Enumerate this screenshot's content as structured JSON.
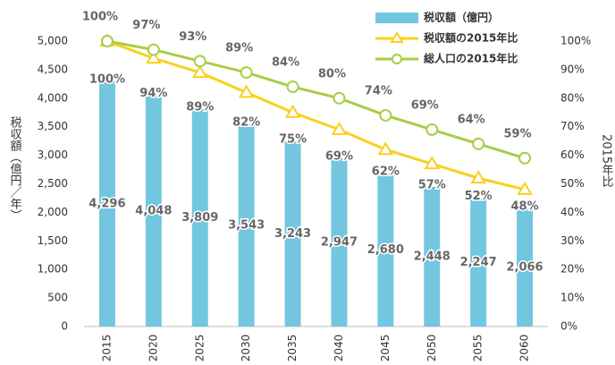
{
  "chart_data": {
    "type": "bar_line",
    "y_label": "税収額（億円／年）",
    "y2_label": "2015年比",
    "categories": [
      "2015",
      "2020",
      "2025",
      "2030",
      "2035",
      "2040",
      "2045",
      "2050",
      "2055",
      "2060"
    ],
    "series": [
      {
        "name": "税収額（億円）",
        "type": "bar",
        "color": "#73c6e0",
        "values": [
          4296,
          4048,
          3809,
          3543,
          3243,
          2947,
          2680,
          2448,
          2247,
          2066
        ],
        "value_labels": [
          "4,296",
          "4,048",
          "3,809",
          "3,543",
          "3,243",
          "2,947",
          "2,680",
          "2,448",
          "2,247",
          "2,066"
        ]
      },
      {
        "name": "税収額の2015年比",
        "type": "line",
        "axis": "y2",
        "color": "#f9d01e",
        "values": [
          100,
          94,
          89,
          82,
          75,
          69,
          62,
          57,
          52,
          48
        ],
        "value_labels": [
          "100%",
          "94%",
          "89%",
          "82%",
          "75%",
          "69%",
          "62%",
          "57%",
          "52%",
          "48%"
        ]
      },
      {
        "name": "総人口の2015年比",
        "type": "line",
        "axis": "y2",
        "color": "#a8cd45",
        "values": [
          100,
          97,
          93,
          89,
          84,
          80,
          74,
          69,
          64,
          59
        ],
        "value_labels": [
          "100%",
          "97%",
          "93%",
          "89%",
          "84%",
          "80%",
          "74%",
          "69%",
          "64%",
          "59%"
        ]
      }
    ],
    "ylim": [
      0,
      5000
    ],
    "yticks": [
      0,
      500,
      {
        "value": 1000,
        "label": "1,000"
      },
      {
        "value": 1500,
        "label": "1,500"
      },
      {
        "value": 2000,
        "label": "2,000"
      },
      {
        "value": 2500,
        "label": "2,500"
      },
      {
        "value": 3000,
        "label": "3,000"
      },
      {
        "value": 3500,
        "label": "3,500"
      },
      {
        "value": 4000,
        "label": "4,000"
      },
      {
        "value": 4500,
        "label": "4,500"
      },
      {
        "value": 5000,
        "label": "5,000"
      }
    ],
    "y2lim": [
      0,
      100
    ],
    "y2ticks": [
      {
        "value": 0,
        "label": "0%"
      },
      {
        "value": 10,
        "label": "10%"
      },
      {
        "value": 20,
        "label": "20%"
      },
      {
        "value": 30,
        "label": "30%"
      },
      {
        "value": 40,
        "label": "40%"
      },
      {
        "value": 50,
        "label": "50%"
      },
      {
        "value": 60,
        "label": "60%"
      },
      {
        "value": 70,
        "label": "70%"
      },
      {
        "value": 80,
        "label": "80%"
      },
      {
        "value": 90,
        "label": "90%"
      },
      {
        "value": 100,
        "label": "100%"
      }
    ],
    "grid": false,
    "legend": "upper right"
  }
}
